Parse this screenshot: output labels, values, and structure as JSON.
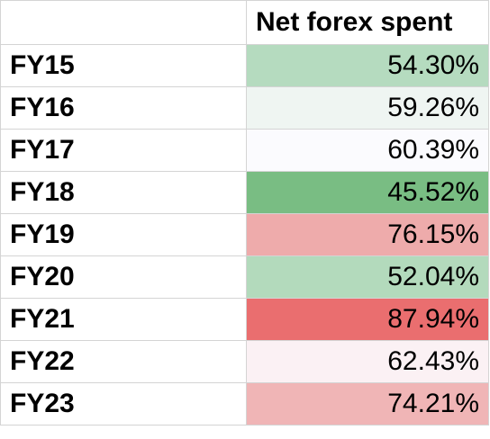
{
  "table": {
    "header": {
      "corner": "",
      "value_column": "Net forex spent"
    },
    "rows": [
      {
        "label": "FY15",
        "value": "54.30%",
        "fill": "#b5dbbf"
      },
      {
        "label": "FY16",
        "value": "59.26%",
        "fill": "#eff5f2"
      },
      {
        "label": "FY17",
        "value": "60.39%",
        "fill": "#fbfbfe"
      },
      {
        "label": "FY18",
        "value": "45.52%",
        "fill": "#79bd83"
      },
      {
        "label": "FY19",
        "value": "76.15%",
        "fill": "#eeabab"
      },
      {
        "label": "FY20",
        "value": "52.04%",
        "fill": "#b3dabc"
      },
      {
        "label": "FY21",
        "value": "87.94%",
        "fill": "#ea6e6f"
      },
      {
        "label": "FY22",
        "value": "62.43%",
        "fill": "#fbf1f4"
      },
      {
        "label": "FY23",
        "value": "74.21%",
        "fill": "#f0b5b6"
      }
    ]
  }
}
